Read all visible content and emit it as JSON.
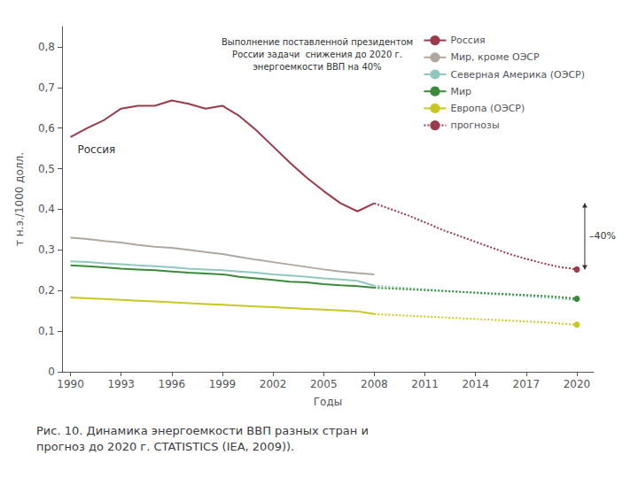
{
  "chart_data": {
    "type": "line",
    "title": "Рис. 10. Динамика энергоемкости ВВП разных стран и\nпрогноз до 2020 г. СTATISTICS (IEA, 2009)).",
    "xlabel": "Годы",
    "ylabel": "т н.э./1000 долл.",
    "x": [
      1990,
      1991,
      1992,
      1993,
      1994,
      1995,
      1996,
      1997,
      1998,
      1999,
      2000,
      2001,
      2002,
      2003,
      2004,
      2005,
      2006,
      2007,
      2008,
      2009,
      2010,
      2011,
      2012,
      2013,
      2014,
      2015,
      2016,
      2017,
      2018,
      2019,
      2020
    ],
    "series": [
      {
        "name": "Россия",
        "color": "#9b3a4a",
        "line_style": "solid",
        "values": [
          0.578,
          0.6,
          0.62,
          0.648,
          0.655,
          0.655,
          0.668,
          0.66,
          0.648,
          0.655,
          0.63,
          0.595,
          0.555,
          0.515,
          0.478,
          0.445,
          0.415,
          0.395,
          0.415,
          null,
          null,
          null,
          null,
          null,
          null,
          null,
          null,
          null,
          null,
          null,
          null
        ]
      },
      {
        "name": "Мир, кроме ОЭСР",
        "color": "#b0a8a0",
        "line_style": "solid",
        "values": [
          0.33,
          0.327,
          0.322,
          0.318,
          0.312,
          0.308,
          0.305,
          0.3,
          0.295,
          0.29,
          0.283,
          0.276,
          0.27,
          0.264,
          0.258,
          0.252,
          0.247,
          0.243,
          0.24,
          null,
          null,
          null,
          null,
          null,
          null,
          null,
          null,
          null,
          null,
          null,
          null
        ]
      },
      {
        "name": "Северная Америка (ОЭСР)",
        "color": "#90c8c0",
        "line_style": "solid",
        "values": [
          0.272,
          0.27,
          0.267,
          0.265,
          0.262,
          0.26,
          0.257,
          0.254,
          0.252,
          0.25,
          0.247,
          0.244,
          0.24,
          0.237,
          0.234,
          0.23,
          0.227,
          0.224,
          0.212,
          null,
          null,
          null,
          null,
          null,
          null,
          null,
          null,
          null,
          null,
          null,
          null
        ]
      },
      {
        "name": "Мир",
        "color": "#3a8a3a",
        "line_style": "solid",
        "values": [
          0.262,
          0.26,
          0.257,
          0.254,
          0.252,
          0.25,
          0.247,
          0.244,
          0.242,
          0.24,
          0.234,
          0.23,
          0.226,
          0.222,
          0.22,
          0.216,
          0.213,
          0.211,
          0.207,
          null,
          null,
          null,
          null,
          null,
          null,
          null,
          null,
          null,
          null,
          null,
          null
        ]
      },
      {
        "name": "Европа (ОЭСР)",
        "color": "#c8c820",
        "line_style": "solid",
        "values": [
          0.183,
          0.181,
          0.179,
          0.177,
          0.175,
          0.173,
          0.171,
          0.169,
          0.167,
          0.165,
          0.163,
          0.161,
          0.159,
          0.157,
          0.155,
          0.153,
          0.151,
          0.149,
          0.142,
          null,
          null,
          null,
          null,
          null,
          null,
          null,
          null,
          null,
          null,
          null,
          null
        ]
      },
      {
        "name": "прогнозы",
        "color": "#9b3a4a",
        "line_style": "dotted",
        "marker": "circle",
        "values": [
          null,
          null,
          null,
          null,
          null,
          null,
          null,
          null,
          null,
          null,
          null,
          null,
          null,
          null,
          null,
          null,
          null,
          null,
          0.415,
          0.4,
          0.385,
          0.368,
          0.35,
          0.335,
          0.32,
          0.305,
          0.29,
          0.278,
          0.267,
          0.258,
          0.252
        ]
      },
      {
        "name": "прогнозы",
        "color": "#90c8c0",
        "line_style": "dotted",
        "values": [
          null,
          null,
          null,
          null,
          null,
          null,
          null,
          null,
          null,
          null,
          null,
          null,
          null,
          null,
          null,
          null,
          null,
          null,
          0.212,
          0.209,
          0.206,
          0.203,
          0.2,
          0.197,
          0.194,
          0.191,
          0.189,
          0.186,
          0.183,
          0.18,
          0.176
        ]
      },
      {
        "name": "прогнозы",
        "color": "#3a8a3a",
        "line_style": "dotted",
        "marker": "circle",
        "values": [
          null,
          null,
          null,
          null,
          null,
          null,
          null,
          null,
          null,
          null,
          null,
          null,
          null,
          null,
          null,
          null,
          null,
          null,
          0.207,
          0.205,
          0.203,
          0.201,
          0.199,
          0.197,
          0.195,
          0.193,
          0.191,
          0.189,
          0.187,
          0.184,
          0.18
        ]
      },
      {
        "name": "прогнозы",
        "color": "#c8c820",
        "line_style": "dotted",
        "marker": "circle",
        "values": [
          null,
          null,
          null,
          null,
          null,
          null,
          null,
          null,
          null,
          null,
          null,
          null,
          null,
          null,
          null,
          null,
          null,
          null,
          0.142,
          0.14,
          0.138,
          0.136,
          0.134,
          0.132,
          0.13,
          0.128,
          0.126,
          0.124,
          0.122,
          0.119,
          0.116
        ]
      }
    ],
    "xlim": [
      1989.5,
      2021
    ],
    "xticks": [
      1990,
      1993,
      1996,
      1999,
      2002,
      2005,
      2008,
      2011,
      2014,
      2017,
      2020
    ],
    "ylim": [
      0,
      0.85
    ],
    "yticks": [
      0,
      {
        "value": 0.1,
        "label": "0,1"
      },
      {
        "value": 0.2,
        "label": "0,2"
      },
      {
        "value": 0.3,
        "label": "0,3"
      },
      {
        "value": 0.4,
        "label": "0,4"
      },
      {
        "value": 0.5,
        "label": "0,5"
      },
      {
        "value": 0.6,
        "label": "0,6"
      },
      {
        "value": 0.7,
        "label": "0,7"
      },
      {
        "value": 0.8,
        "label": "0,8"
      }
    ],
    "annotations": [
      "Россия",
      "Выполнение поставленной президентом\nРоссии задачи  снижения до 2020 г.\nэнергоемкости ВВП на 40%",
      "–40%"
    ],
    "grid": false,
    "legend": "upper right"
  }
}
